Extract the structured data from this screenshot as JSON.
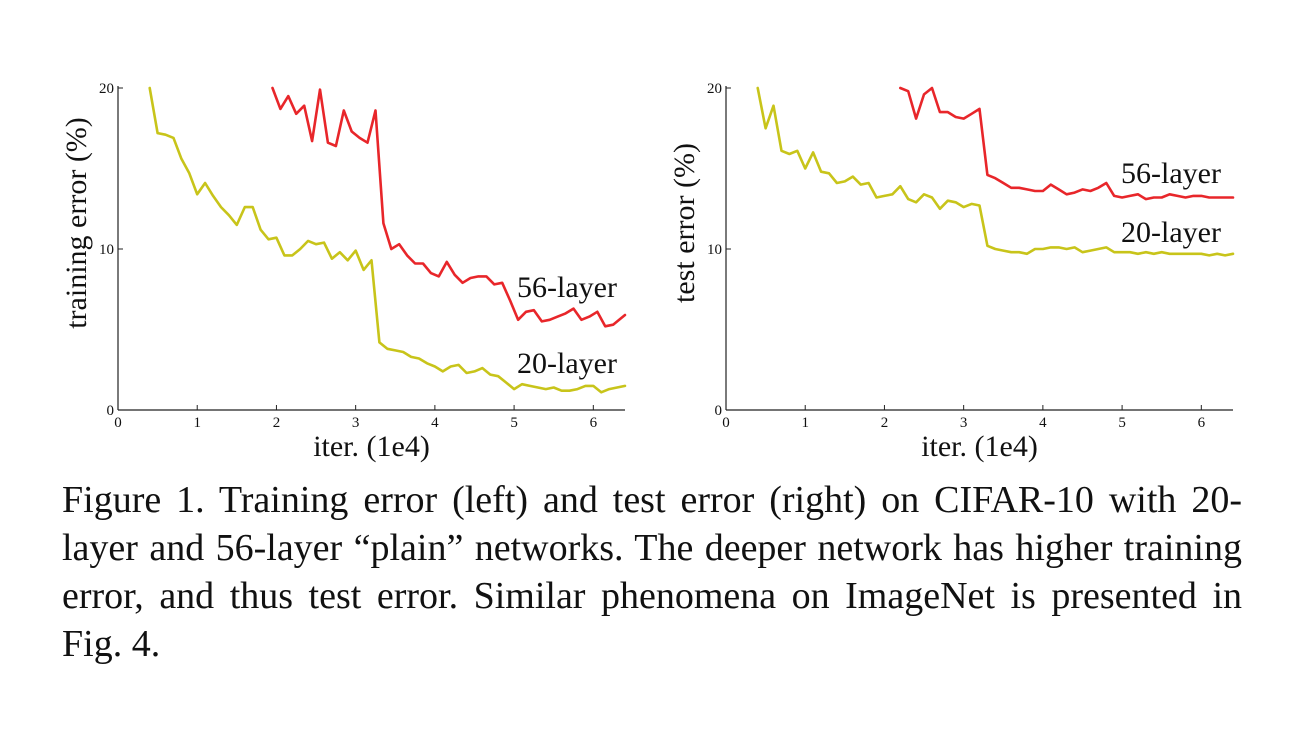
{
  "caption": "Figure 1. Training error (left) and test error (right) on CIFAR-10 with 20-layer and 56-layer “plain” networks. The deeper network has higher training error, and thus test error. Similar phenomena on ImageNet is presented in Fig. 4.",
  "chart_data": [
    {
      "type": "line",
      "title": "",
      "xlabel": "iter. (1e4)",
      "ylabel": "training error (%)",
      "xlim": [
        0,
        6.4
      ],
      "ylim": [
        0,
        20
      ],
      "xticks": [
        0,
        1,
        2,
        3,
        4,
        5,
        6
      ],
      "yticks": [
        0,
        10,
        20
      ],
      "grid": false,
      "series": [
        {
          "name": "56-layer",
          "color": "#e8262a",
          "x": [
            1.95,
            2.05,
            2.15,
            2.25,
            2.35,
            2.45,
            2.55,
            2.65,
            2.75,
            2.85,
            2.95,
            3.05,
            3.15,
            3.25,
            3.35,
            3.45,
            3.55,
            3.65,
            3.75,
            3.85,
            3.95,
            4.05,
            4.15,
            4.25,
            4.35,
            4.45,
            4.55,
            4.65,
            4.75,
            4.85,
            4.95,
            5.05,
            5.15,
            5.25,
            5.35,
            5.45,
            5.55,
            5.65,
            5.75,
            5.85,
            5.95,
            6.05,
            6.15,
            6.25,
            6.35,
            6.4
          ],
          "values": [
            20.0,
            18.7,
            19.5,
            18.4,
            18.9,
            16.7,
            19.9,
            16.6,
            16.4,
            18.6,
            17.3,
            16.9,
            16.6,
            18.6,
            11.6,
            10.0,
            10.3,
            9.6,
            9.1,
            9.1,
            8.5,
            8.3,
            9.2,
            8.4,
            7.9,
            8.2,
            8.3,
            8.3,
            7.8,
            7.9,
            6.8,
            5.6,
            6.1,
            6.2,
            5.5,
            5.6,
            5.8,
            6.0,
            6.3,
            5.6,
            5.8,
            6.1,
            5.2,
            5.3,
            5.7,
            5.9
          ]
        },
        {
          "name": "20-layer",
          "color": "#c8c41a",
          "x": [
            0.4,
            0.5,
            0.6,
            0.7,
            0.8,
            0.9,
            1.0,
            1.1,
            1.2,
            1.3,
            1.4,
            1.5,
            1.6,
            1.7,
            1.8,
            1.9,
            2.0,
            2.1,
            2.2,
            2.3,
            2.4,
            2.5,
            2.6,
            2.7,
            2.8,
            2.9,
            3.0,
            3.1,
            3.2,
            3.3,
            3.4,
            3.5,
            3.6,
            3.7,
            3.8,
            3.9,
            4.0,
            4.1,
            4.2,
            4.3,
            4.4,
            4.5,
            4.6,
            4.7,
            4.8,
            4.9,
            5.0,
            5.1,
            5.2,
            5.3,
            5.4,
            5.5,
            5.6,
            5.7,
            5.8,
            5.9,
            6.0,
            6.1,
            6.2,
            6.3,
            6.4
          ],
          "values": [
            20.0,
            17.2,
            17.1,
            16.9,
            15.6,
            14.7,
            13.4,
            14.1,
            13.3,
            12.6,
            12.1,
            11.5,
            12.6,
            12.6,
            11.2,
            10.6,
            10.7,
            9.6,
            9.6,
            10.0,
            10.5,
            10.3,
            10.4,
            9.4,
            9.8,
            9.3,
            9.9,
            8.7,
            9.3,
            4.2,
            3.8,
            3.7,
            3.6,
            3.3,
            3.2,
            2.9,
            2.7,
            2.4,
            2.7,
            2.8,
            2.3,
            2.4,
            2.6,
            2.2,
            2.1,
            1.7,
            1.3,
            1.6,
            1.5,
            1.4,
            1.3,
            1.4,
            1.2,
            1.2,
            1.3,
            1.5,
            1.5,
            1.1,
            1.3,
            1.4,
            1.5
          ]
        }
      ]
    },
    {
      "type": "line",
      "title": "",
      "xlabel": "iter. (1e4)",
      "ylabel": "test error (%)",
      "xlim": [
        0,
        6.4
      ],
      "ylim": [
        0,
        20
      ],
      "xticks": [
        0,
        1,
        2,
        3,
        4,
        5,
        6
      ],
      "yticks": [
        0,
        10,
        20
      ],
      "grid": false,
      "series": [
        {
          "name": "56-layer",
          "color": "#e8262a",
          "x": [
            2.2,
            2.3,
            2.4,
            2.5,
            2.6,
            2.7,
            2.8,
            2.9,
            3.0,
            3.1,
            3.2,
            3.3,
            3.4,
            3.5,
            3.6,
            3.7,
            3.8,
            3.9,
            4.0,
            4.1,
            4.2,
            4.3,
            4.4,
            4.5,
            4.6,
            4.7,
            4.8,
            4.9,
            5.0,
            5.1,
            5.2,
            5.3,
            5.4,
            5.5,
            5.6,
            5.7,
            5.8,
            5.9,
            6.0,
            6.1,
            6.2,
            6.3,
            6.4
          ],
          "values": [
            20.0,
            19.8,
            18.1,
            19.6,
            20.0,
            18.5,
            18.5,
            18.2,
            18.1,
            18.4,
            18.7,
            14.6,
            14.4,
            14.1,
            13.8,
            13.8,
            13.7,
            13.6,
            13.6,
            14.0,
            13.7,
            13.4,
            13.5,
            13.7,
            13.6,
            13.8,
            14.1,
            13.3,
            13.2,
            13.3,
            13.4,
            13.1,
            13.2,
            13.2,
            13.4,
            13.3,
            13.2,
            13.3,
            13.3,
            13.2,
            13.2,
            13.2,
            13.2
          ]
        },
        {
          "name": "20-layer",
          "color": "#c8c41a",
          "x": [
            0.4,
            0.5,
            0.6,
            0.7,
            0.8,
            0.9,
            1.0,
            1.1,
            1.2,
            1.3,
            1.4,
            1.5,
            1.6,
            1.7,
            1.8,
            1.9,
            2.0,
            2.1,
            2.2,
            2.3,
            2.4,
            2.5,
            2.6,
            2.7,
            2.8,
            2.9,
            3.0,
            3.1,
            3.2,
            3.3,
            3.4,
            3.5,
            3.6,
            3.7,
            3.8,
            3.9,
            4.0,
            4.1,
            4.2,
            4.3,
            4.4,
            4.5,
            4.6,
            4.7,
            4.8,
            4.9,
            5.0,
            5.1,
            5.2,
            5.3,
            5.4,
            5.5,
            5.6,
            5.7,
            5.8,
            5.9,
            6.0,
            6.1,
            6.2,
            6.3,
            6.4
          ],
          "values": [
            20.0,
            17.5,
            18.9,
            16.1,
            15.9,
            16.1,
            15.0,
            16.0,
            14.8,
            14.7,
            14.1,
            14.2,
            14.5,
            14.0,
            14.1,
            13.2,
            13.3,
            13.4,
            13.9,
            13.1,
            12.9,
            13.4,
            13.2,
            12.5,
            13.0,
            12.9,
            12.6,
            12.8,
            12.7,
            10.2,
            10.0,
            9.9,
            9.8,
            9.8,
            9.7,
            10.0,
            10.0,
            10.1,
            10.1,
            10.0,
            10.1,
            9.8,
            9.9,
            10.0,
            10.1,
            9.8,
            9.8,
            9.8,
            9.7,
            9.8,
            9.7,
            9.8,
            9.7,
            9.7,
            9.7,
            9.7,
            9.7,
            9.6,
            9.7,
            9.6,
            9.7
          ]
        }
      ]
    }
  ]
}
